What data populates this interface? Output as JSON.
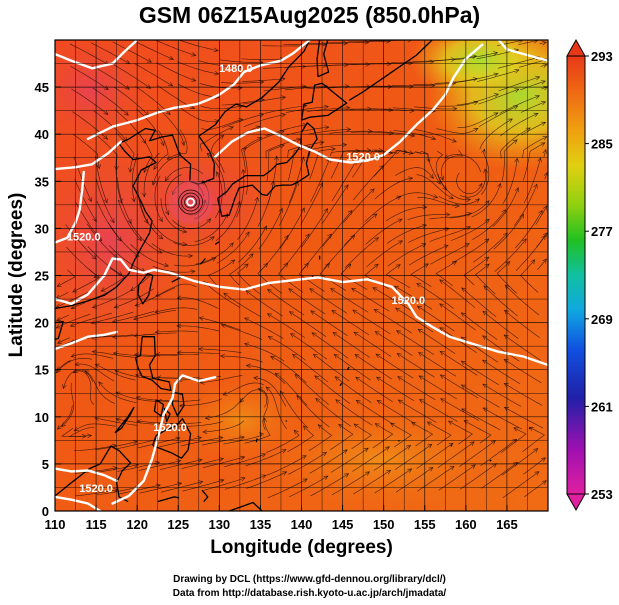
{
  "title": "GSM 06Z15Aug2025 (850.0hPa)",
  "x_axis": {
    "label": "Longitude (degrees)",
    "ticks": [
      "110",
      "115",
      "120",
      "125",
      "130",
      "135",
      "140",
      "145",
      "150",
      "155",
      "160",
      "165"
    ],
    "range": [
      110,
      170
    ]
  },
  "y_axis": {
    "label": "Latitude  (degrees)",
    "ticks": [
      "0",
      "5",
      "10",
      "15",
      "20",
      "25",
      "30",
      "35",
      "40",
      "45"
    ],
    "range": [
      0,
      50
    ]
  },
  "colorbar": {
    "ticks": [
      "293",
      "285",
      "277",
      "269",
      "261",
      "253"
    ],
    "range": [
      253,
      293
    ],
    "colors": [
      "#e0207a",
      "#a000a8",
      "#2020b0",
      "#1050e0",
      "#10a8e0",
      "#10c8b0",
      "#20c030",
      "#80d010",
      "#d0d010",
      "#f0a010",
      "#f06010",
      "#e83818"
    ]
  },
  "contours": [
    {
      "label": "1480.0",
      "lon": 132,
      "lat": 46.6
    },
    {
      "label": "1520.0",
      "lon": 147.5,
      "lat": 37.2
    },
    {
      "label": "1520.0",
      "lon": 113.5,
      "lat": 28.7
    },
    {
      "label": "1520.0",
      "lon": 153,
      "lat": 22
    },
    {
      "label": "1520.0",
      "lon": 124,
      "lat": 8.5
    },
    {
      "label": "1520.0",
      "lon": 115,
      "lat": 2
    }
  ],
  "typhoon_center": {
    "lon": 126.5,
    "lat": 32.8
  },
  "credits": {
    "drawing": "Drawing by DCL (https://www.gfd-dennou.org/library/dcl/)",
    "data": "Data from http://database.rish.kyoto-u.ac.jp/arch/jmadata/"
  }
}
